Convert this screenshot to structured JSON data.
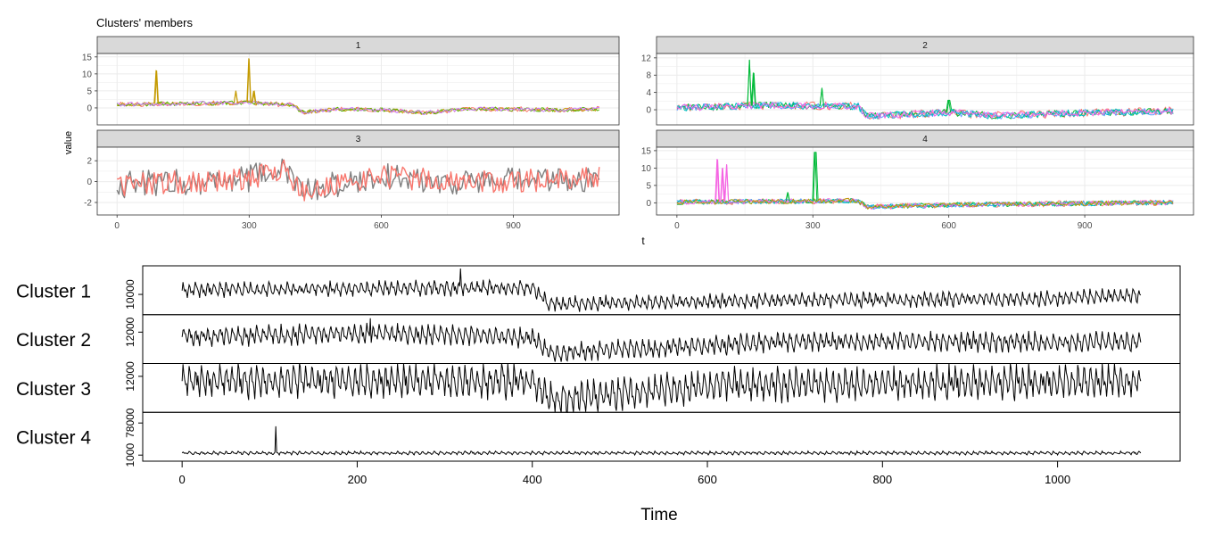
{
  "top_title": "Clusters' members",
  "top_ylabel": "value",
  "top_xlabel": "t",
  "bottom_xlabel": "Time",
  "colors": {
    "strip_bg": "#d9d9d9",
    "grid": "#ebebeb",
    "border": "#333333",
    "tick_text": "#4d4d4d",
    "black": "#000000"
  },
  "chart_data": [
    {
      "type": "line",
      "title": "Clusters' members",
      "xlabel": "t",
      "ylabel": "value",
      "facets": [
        {
          "label": "1",
          "xlim": [
            -45,
            1140
          ],
          "xticks": [
            0,
            300,
            600,
            900
          ],
          "ylim": [
            -5,
            16
          ],
          "yticks": [
            0,
            5,
            10,
            15
          ],
          "series_colors": [
            "#f8766d",
            "#c49a00",
            "#53b400",
            "#c77cff"
          ],
          "baseline": [
            [
              0,
              1
            ],
            [
              100,
              1.2
            ],
            [
              300,
              1.5
            ],
            [
              400,
              0.8
            ],
            [
              420,
              -1.2
            ],
            [
              500,
              -0.4
            ],
            [
              600,
              -0.6
            ],
            [
              700,
              -1.4
            ],
            [
              800,
              -0.3
            ],
            [
              900,
              -0.4
            ],
            [
              1000,
              -0.6
            ],
            [
              1095,
              -0.3
            ]
          ],
          "noise": 1.2,
          "spikes": [
            [
              90,
              11
            ],
            [
              300,
              14.5
            ],
            [
              310,
              5
            ],
            [
              270,
              5
            ]
          ]
        },
        {
          "label": "2",
          "xlim": [
            -45,
            1140
          ],
          "xticks": [
            0,
            300,
            600,
            900
          ],
          "ylim": [
            -3.5,
            13
          ],
          "yticks": [
            0,
            4,
            8,
            12
          ],
          "series_colors": [
            "#f8766d",
            "#00ba38",
            "#619cff",
            "#00bfc4",
            "#f564e3"
          ],
          "baseline": [
            [
              0,
              0.5
            ],
            [
              200,
              1.0
            ],
            [
              400,
              0.8
            ],
            [
              420,
              -1.5
            ],
            [
              600,
              -0.6
            ],
            [
              700,
              -1.4
            ],
            [
              900,
              -0.7
            ],
            [
              1095,
              -0.3
            ]
          ],
          "noise": 1.6,
          "spikes": [
            [
              160,
              11.5
            ],
            [
              170,
              8.5
            ],
            [
              320,
              5
            ],
            [
              600,
              2.2
            ]
          ]
        },
        {
          "label": "3",
          "xlim": [
            -45,
            1140
          ],
          "xticks": [
            0,
            300,
            600,
            900
          ],
          "ylim": [
            -3.2,
            3.3
          ],
          "yticks": [
            -2,
            0,
            2
          ],
          "series_colors": [
            "#7f7f7f",
            "#f8766d"
          ],
          "baseline": [
            [
              0,
              -0.3
            ],
            [
              300,
              0.3
            ],
            [
              380,
              1.2
            ],
            [
              420,
              -1
            ],
            [
              600,
              0.5
            ],
            [
              800,
              -0.1
            ],
            [
              1095,
              0.3
            ]
          ],
          "noise": 2.2,
          "spikes": []
        },
        {
          "label": "4",
          "xlim": [
            -45,
            1140
          ],
          "xticks": [
            0,
            300,
            600,
            900
          ],
          "ylim": [
            -3.5,
            16
          ],
          "yticks": [
            0,
            5,
            10,
            15
          ],
          "series_colors": [
            "#f8766d",
            "#00ba38",
            "#619cff",
            "#00bfc4",
            "#f564e3",
            "#b79f00"
          ],
          "baseline": [
            [
              0,
              0.2
            ],
            [
              400,
              0.6
            ],
            [
              420,
              -1.2
            ],
            [
              600,
              -0.6
            ],
            [
              1095,
              0.1
            ]
          ],
          "noise": 1.4,
          "spikes": [
            [
              90,
              12.5
            ],
            [
              100,
              10
            ],
            [
              110,
              11
            ],
            [
              305,
              14.5
            ],
            [
              245,
              3
            ]
          ]
        }
      ]
    },
    {
      "type": "line",
      "xlabel": "Time",
      "xlim": [
        -45,
        1140
      ],
      "xticks": [
        0,
        200,
        400,
        600,
        800,
        1000
      ],
      "panels": [
        {
          "label": "Cluster 1",
          "yticks": [
            10000
          ],
          "ylim": [
            6000,
            16000
          ],
          "baseline": [
            [
              0,
              11000
            ],
            [
              300,
              11500
            ],
            [
              400,
              11600
            ],
            [
              420,
              7700
            ],
            [
              700,
              8600
            ],
            [
              1000,
              9000
            ],
            [
              1095,
              9800
            ]
          ],
          "amp": 2200,
          "spikes": [
            [
              318,
              16200
            ]
          ]
        },
        {
          "label": "Cluster 2",
          "yticks": [
            12000
          ],
          "ylim": [
            6000,
            15000
          ],
          "baseline": [
            [
              0,
              11000
            ],
            [
              220,
              11800
            ],
            [
              400,
              10800
            ],
            [
              420,
              7500
            ],
            [
              700,
              10000
            ],
            [
              1095,
              9800
            ]
          ],
          "amp": 2600,
          "spikes": [
            [
              215,
              15000
            ]
          ]
        },
        {
          "label": "Cluster 3",
          "yticks": [
            12000
          ],
          "ylim": [
            5000,
            14000
          ],
          "baseline": [
            [
              0,
              11000
            ],
            [
              400,
              11000
            ],
            [
              420,
              7000
            ],
            [
              600,
              10000
            ],
            [
              800,
              10500
            ],
            [
              1095,
              11000
            ]
          ],
          "amp": 4500,
          "spikes": []
        },
        {
          "label": "Cluster 4",
          "yticks": [
            1000,
            78000
          ],
          "ylim": [
            -5000,
            95000
          ],
          "baseline": [
            [
              0,
              6000
            ],
            [
              1095,
              6000
            ]
          ],
          "amp": 5000,
          "spikes": [
            [
              107,
              70000
            ]
          ]
        }
      ]
    }
  ]
}
